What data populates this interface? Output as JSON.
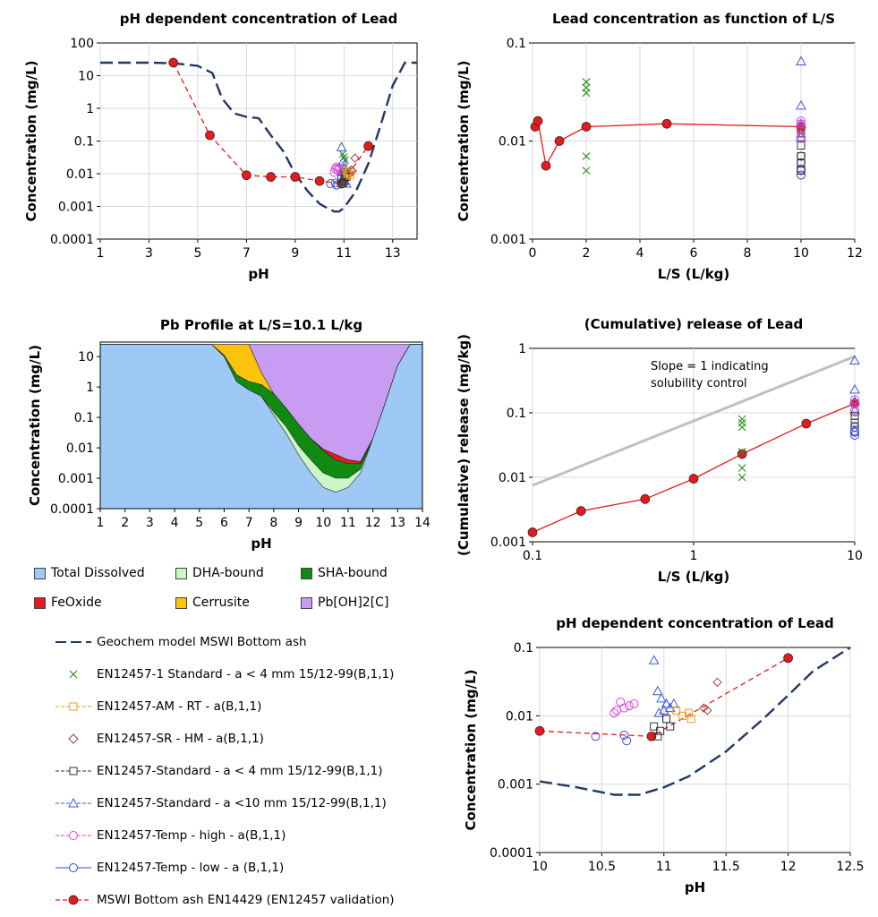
{
  "colors": {
    "model": "#1f3864",
    "standard4": "#2e8b22",
    "am": "#f39c12",
    "sr": "#a0413f",
    "std4sq": "#333333",
    "std10": "#3a5bd9",
    "temphigh": "#e040e0",
    "templow": "#3a4ccf",
    "mswi": "#e41a1c",
    "total": "#9ec9f5",
    "dha": "#cdf5c8",
    "sha": "#118a11",
    "feoxide": "#e41a1c",
    "cerrusite": "#fbc30b",
    "pboh": "#c79cf2",
    "slope": "#c0c0c0"
  },
  "panels": {
    "p1": {
      "title": "pH dependent concentration of Lead",
      "xlabel": "pH",
      "ylabel": "Concentration (mg/L)"
    },
    "p2": {
      "title": "Lead concentration as function of L/S",
      "xlabel": "L/S (L/kg)",
      "ylabel": "Concentration (mg/L)"
    },
    "p3": {
      "title": "Pb Profile at L/S=10.1 L/kg",
      "xlabel": "pH",
      "ylabel": "Concentration (mg/L)"
    },
    "p4": {
      "title": "(Cumulative) release of Lead",
      "xlabel": "L/S (L/kg)",
      "ylabel": "(Cumulative) release (mg/kg)",
      "annotation_line1": "Slope = 1 indicating",
      "annotation_line2": "solubility control"
    },
    "p5": {
      "title": "pH dependent concentration of Lead",
      "xlabel": "pH",
      "ylabel": "Concentration (mg/L)"
    }
  },
  "profile_legend": [
    "Total Dissolved",
    "DHA-bound",
    "SHA-bound",
    "FeOxide",
    "Cerrusite",
    "Pb[OH]2[C]"
  ],
  "series_legend": [
    "Geochem model MSWI Bottom ash",
    "EN12457-1 Standard - a < 4 mm 15/12-99(B,1,1)",
    "EN12457-AM - RT - a(B,1,1)",
    "EN12457-SR - HM - a(B,1,1)",
    "EN12457-Standard - a < 4 mm 15/12-99(B,1,1)",
    "EN12457-Standard - a <10 mm 15/12-99(B,1,1)",
    "EN12457-Temp - high - a(B,1,1)",
    "EN12457-Temp - low - a (B,1,1)",
    "MSWI Bottom ash EN14429 (EN12457 validation)"
  ],
  "chart_data": [
    {
      "id": "p1",
      "type": "scatter",
      "title": "pH dependent concentration of Lead",
      "xlabel": "pH",
      "ylabel": "Concentration (mg/L)",
      "xlim": [
        1,
        14
      ],
      "ylim": [
        0.0001,
        100
      ],
      "yscale": "log",
      "xticks": [
        "1",
        "3",
        "5",
        "7",
        "9",
        "11",
        "13"
      ],
      "yticks": [
        "0.0001",
        "0.001",
        "0.01",
        "0.1",
        "1",
        "10",
        "100"
      ],
      "series": [
        {
          "key": "model",
          "name": "Geochem model MSWI Bottom ash",
          "x": [
            1,
            3,
            4,
            5,
            5.6,
            6,
            6.5,
            7,
            7.5,
            8,
            8.5,
            9,
            9.5,
            10,
            10.3,
            10.6,
            10.8,
            11,
            11.5,
            12,
            12.5,
            13,
            13.5,
            14
          ],
          "y": [
            25,
            25,
            24,
            20,
            12,
            2,
            0.7,
            0.55,
            0.5,
            0.15,
            0.05,
            0.01,
            0.003,
            0.0012,
            0.0009,
            0.0007,
            0.0007,
            0.0009,
            0.003,
            0.02,
            0.3,
            5,
            25,
            25
          ]
        },
        {
          "key": "mswi",
          "name": "MSWI Bottom ash EN14429 (EN12457 validation)",
          "x": [
            4,
            5.5,
            7,
            8,
            9,
            10,
            10.9,
            12
          ],
          "y": [
            25,
            0.15,
            0.009,
            0.008,
            0.008,
            0.006,
            0.005,
            0.07
          ]
        },
        {
          "key": "standard4",
          "x": [
            10.95,
            11.0,
            11.05,
            10.95,
            11.0
          ],
          "y": [
            0.04,
            0.032,
            0.026,
            0.013,
            0.005
          ]
        },
        {
          "key": "std10",
          "x": [
            10.9,
            10.95,
            11.0,
            11.05,
            10.95,
            11.0,
            11.05,
            11.1
          ],
          "y": [
            0.065,
            0.023,
            0.015,
            0.011,
            0.012,
            0.008,
            0.006,
            0.005
          ]
        },
        {
          "key": "temphigh",
          "x": [
            10.6,
            10.65,
            10.7,
            10.75,
            10.8
          ],
          "y": [
            0.011,
            0.014,
            0.016,
            0.013,
            0.015
          ]
        },
        {
          "key": "templow",
          "x": [
            10.45,
            10.65,
            10.7
          ],
          "y": [
            0.005,
            0.0052,
            0.0045
          ]
        },
        {
          "key": "std4sq",
          "x": [
            10.9,
            10.95,
            11.0,
            11.05,
            11.1
          ],
          "y": [
            0.007,
            0.005,
            0.006,
            0.009,
            0.008
          ]
        },
        {
          "key": "am",
          "x": [
            11.1,
            11.15,
            11.2,
            11.25
          ],
          "y": [
            0.012,
            0.01,
            0.011,
            0.009
          ]
        },
        {
          "key": "sr",
          "x": [
            11.3,
            11.35,
            11.45
          ],
          "y": [
            0.013,
            0.012,
            0.03
          ]
        }
      ]
    },
    {
      "id": "p2",
      "type": "scatter",
      "title": "Lead concentration as function of L/S",
      "xlabel": "L/S (L/kg)",
      "ylabel": "Concentration (mg/L)",
      "xlim": [
        0,
        12
      ],
      "ylim": [
        0.001,
        0.1
      ],
      "yscale": "log",
      "xticks": [
        "0",
        "2",
        "4",
        "6",
        "8",
        "10",
        "12"
      ],
      "yticks": [
        "0.001",
        "0.01",
        "0.1"
      ],
      "series": [
        {
          "key": "mswi",
          "x": [
            0.1,
            0.2,
            0.5,
            1,
            2,
            5,
            10
          ],
          "y": [
            0.014,
            0.016,
            0.0056,
            0.01,
            0.014,
            0.015,
            0.014
          ]
        },
        {
          "key": "standard4",
          "x": [
            2,
            2,
            2,
            2,
            2
          ],
          "y": [
            0.04,
            0.035,
            0.031,
            0.007,
            0.005
          ]
        },
        {
          "key": "std10",
          "x": [
            10,
            10,
            10,
            10,
            10
          ],
          "y": [
            0.065,
            0.023,
            0.015,
            0.011,
            0.012
          ]
        },
        {
          "key": "temphigh",
          "x": [
            10,
            10,
            10,
            10,
            10
          ],
          "y": [
            0.011,
            0.014,
            0.016,
            0.013,
            0.015
          ]
        },
        {
          "key": "templow",
          "x": [
            10,
            10,
            10,
            10,
            10
          ],
          "y": [
            0.005,
            0.0052,
            0.0045,
            0.006,
            0.007
          ]
        },
        {
          "key": "std4sq",
          "x": [
            10,
            10,
            10,
            10
          ],
          "y": [
            0.007,
            0.005,
            0.006,
            0.009
          ]
        },
        {
          "key": "sr",
          "x": [
            10,
            10
          ],
          "y": [
            0.013,
            0.012
          ]
        }
      ]
    },
    {
      "id": "p3",
      "type": "area",
      "title": "Pb Profile at L/S=10.1 L/kg",
      "xlabel": "pH",
      "ylabel": "Concentration (mg/L)",
      "xlim": [
        1,
        14
      ],
      "ylim": [
        0.0001,
        30
      ],
      "yscale": "log",
      "xticks": [
        "1",
        "2",
        "3",
        "4",
        "5",
        "6",
        "7",
        "8",
        "9",
        "10",
        "11",
        "12",
        "13",
        "14"
      ],
      "yticks": [
        "0.0001",
        "0.001",
        "0.01",
        "0.1",
        "1",
        "10"
      ],
      "x": [
        1,
        5.5,
        6,
        6.5,
        7,
        7.5,
        8,
        8.5,
        9,
        9.5,
        10,
        10.5,
        11,
        11.5,
        12,
        12.5,
        13,
        13.5,
        14
      ],
      "series": [
        {
          "name": "Total Dissolved",
          "values": [
            25,
            25,
            10,
            1.5,
            0.8,
            0.5,
            0.12,
            0.03,
            0.006,
            0.0015,
            0.0005,
            0.00035,
            0.0005,
            0.0015,
            0.02,
            0.3,
            5,
            25,
            25
          ]
        },
        {
          "name": "DHA-bound",
          "values": [
            25,
            25,
            10,
            1.5,
            0.8,
            0.5,
            0.15,
            0.05,
            0.012,
            0.004,
            0.0015,
            0.001,
            0.001,
            0.002,
            0.02,
            0.3,
            5,
            25,
            25
          ]
        },
        {
          "name": "SHA-bound",
          "values": [
            25,
            25,
            11,
            2.5,
            1.5,
            1.2,
            0.6,
            0.2,
            0.06,
            0.02,
            0.008,
            0.004,
            0.003,
            0.003,
            0.02,
            0.3,
            5,
            25,
            25
          ]
        },
        {
          "name": "FeOxide",
          "values": [
            25,
            25,
            11,
            2.5,
            1.5,
            1.2,
            0.6,
            0.2,
            0.06,
            0.02,
            0.009,
            0.006,
            0.004,
            0.0035,
            0.02,
            0.3,
            5,
            25,
            25
          ]
        },
        {
          "name": "Cerrusite",
          "values": [
            25,
            25,
            25,
            25,
            25,
            3,
            0.6,
            0.2,
            0.06,
            0.02,
            0.009,
            0.006,
            0.004,
            0.0035,
            0.02,
            0.3,
            5,
            25,
            25
          ]
        },
        {
          "name": "Pb[OH]2[C]",
          "values": [
            25,
            25,
            25,
            25,
            25,
            25,
            25,
            25,
            25,
            25,
            25,
            25,
            25,
            25,
            25,
            25,
            25,
            25,
            25
          ]
        }
      ]
    },
    {
      "id": "p4",
      "type": "scatter",
      "title": "(Cumulative) release of Lead",
      "xlabel": "L/S (L/kg)",
      "ylabel": "(Cumulative) release (mg/kg)",
      "xlim": [
        0.1,
        10
      ],
      "xscale": "log",
      "ylim": [
        0.001,
        1
      ],
      "yscale": "log",
      "xticks": [
        "0.1",
        "1",
        "10"
      ],
      "yticks": [
        "0.001",
        "0.01",
        "0.1",
        "1"
      ],
      "series": [
        {
          "key": "slope",
          "x": [
            0.1,
            10
          ],
          "y": [
            0.0075,
            0.75
          ]
        },
        {
          "key": "mswi",
          "x": [
            0.1,
            0.2,
            0.5,
            1,
            2,
            5,
            10
          ],
          "y": [
            0.0014,
            0.003,
            0.0046,
            0.0095,
            0.023,
            0.068,
            0.14
          ]
        },
        {
          "key": "standard4",
          "x": [
            2,
            2,
            2,
            2,
            2,
            2
          ],
          "y": [
            0.08,
            0.07,
            0.06,
            0.025,
            0.014,
            0.01
          ]
        },
        {
          "key": "std10",
          "x": [
            10,
            10,
            10,
            10
          ],
          "y": [
            0.65,
            0.23,
            0.15,
            0.11
          ]
        },
        {
          "key": "temphigh",
          "x": [
            10,
            10,
            10
          ],
          "y": [
            0.11,
            0.14,
            0.16
          ]
        },
        {
          "key": "templow",
          "x": [
            10,
            10,
            10,
            10
          ],
          "y": [
            0.05,
            0.052,
            0.045,
            0.06
          ]
        },
        {
          "key": "std4sq",
          "x": [
            10,
            10,
            10
          ],
          "y": [
            0.07,
            0.08,
            0.09
          ]
        }
      ]
    },
    {
      "id": "p5",
      "type": "scatter",
      "title": "pH dependent concentration of Lead",
      "xlabel": "pH",
      "ylabel": "Concentration (mg/L)",
      "xlim": [
        10,
        12.5
      ],
      "ylim": [
        0.0001,
        0.1
      ],
      "yscale": "log",
      "xticks": [
        "10",
        "10.5",
        "11",
        "11.5",
        "12",
        "12.5"
      ],
      "yticks": [
        "0.0001",
        "0.001",
        "0.01",
        "0.1"
      ],
      "series": [
        {
          "key": "model",
          "x": [
            10,
            10.3,
            10.6,
            10.8,
            11,
            11.2,
            11.5,
            11.8,
            12,
            12.2,
            12.5
          ],
          "y": [
            0.0011,
            0.0009,
            0.0007,
            0.0007,
            0.0009,
            0.0013,
            0.003,
            0.009,
            0.02,
            0.045,
            0.13
          ]
        },
        {
          "key": "mswi",
          "x": [
            10,
            10.9,
            12
          ],
          "y": [
            0.006,
            0.005,
            0.07
          ]
        },
        {
          "key": "std10",
          "x": [
            10.92,
            10.95,
            10.98,
            11.02,
            11.0,
            10.96,
            11.05,
            11.08
          ],
          "y": [
            0.065,
            0.023,
            0.018,
            0.015,
            0.012,
            0.011,
            0.013,
            0.015
          ]
        },
        {
          "key": "temphigh",
          "x": [
            10.6,
            10.62,
            10.65,
            10.68,
            10.72,
            10.76
          ],
          "y": [
            0.011,
            0.012,
            0.016,
            0.013,
            0.014,
            0.015
          ]
        },
        {
          "key": "templow",
          "x": [
            10.45,
            10.68,
            10.7
          ],
          "y": [
            0.005,
            0.0052,
            0.0043
          ]
        },
        {
          "key": "std4sq",
          "x": [
            10.92,
            10.95,
            10.97,
            11.02,
            11.05
          ],
          "y": [
            0.007,
            0.005,
            0.006,
            0.009,
            0.007
          ]
        },
        {
          "key": "am",
          "x": [
            11.1,
            11.15,
            11.2,
            11.22
          ],
          "y": [
            0.012,
            0.01,
            0.011,
            0.009
          ]
        },
        {
          "key": "sr",
          "x": [
            11.32,
            11.35,
            11.43
          ],
          "y": [
            0.013,
            0.012,
            0.031
          ]
        }
      ]
    }
  ]
}
